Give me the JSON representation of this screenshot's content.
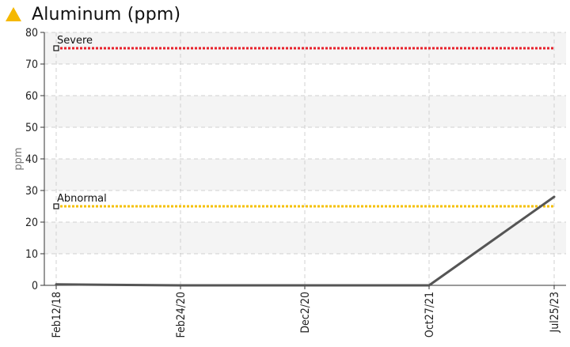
{
  "header": {
    "title": "Aluminum (ppm)",
    "icon": "warning-triangle-icon",
    "icon_color": "#f5b800"
  },
  "chart_data": {
    "type": "line",
    "title": "Aluminum (ppm)",
    "xlabel": "",
    "ylabel": "ppm",
    "categories": [
      "Feb12/18",
      "Feb24/20",
      "Dec2/20",
      "Oct27/21",
      "Jul25/23"
    ],
    "series": [
      {
        "values": [
          0.3,
          0,
          0,
          0,
          28
        ],
        "color": "#555555"
      }
    ],
    "ylim": [
      0,
      80
    ],
    "yticks": [
      0,
      10,
      20,
      30,
      40,
      50,
      60,
      70,
      80
    ],
    "grid": true,
    "thresholds": [
      {
        "label": "Severe",
        "value": 75,
        "color": "#e8212b"
      },
      {
        "label": "Abnormal",
        "value": 25,
        "color": "#f5c000"
      }
    ]
  }
}
